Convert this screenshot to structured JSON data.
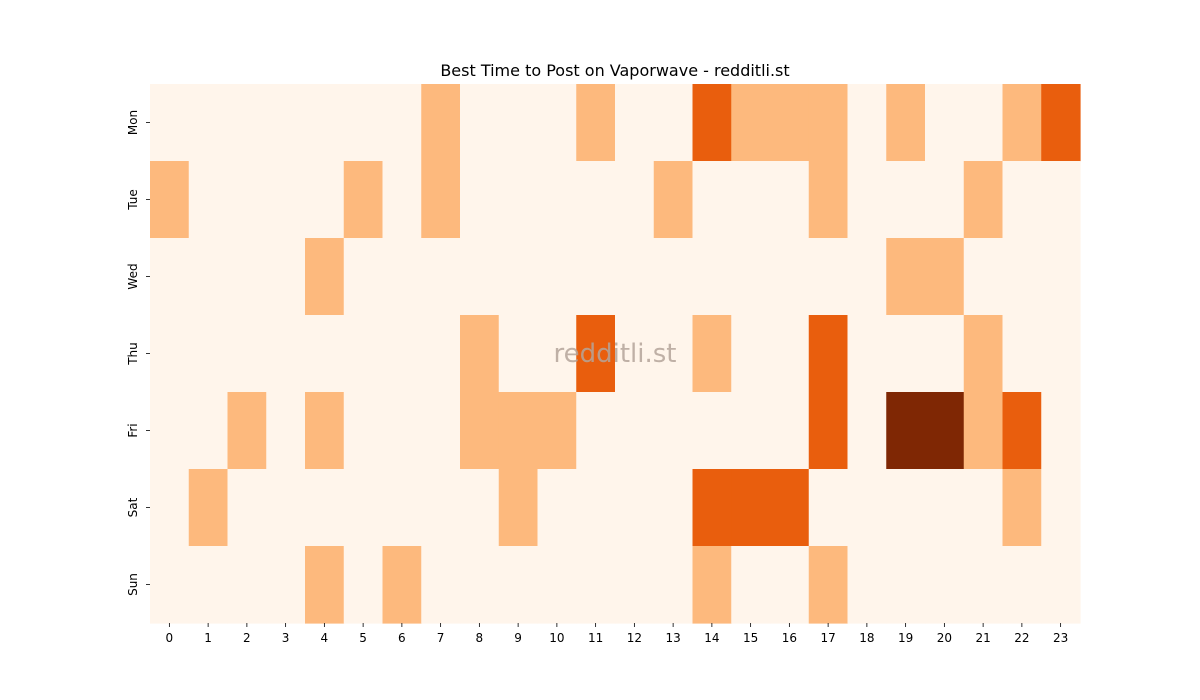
{
  "chart_data": {
    "type": "heatmap",
    "title": "Best Time to Post on Vaporwave - redditli.st",
    "watermark": "redditli.st",
    "xlabel": "",
    "ylabel": "",
    "x_categories": [
      "0",
      "1",
      "2",
      "3",
      "4",
      "5",
      "6",
      "7",
      "8",
      "9",
      "10",
      "11",
      "12",
      "13",
      "14",
      "15",
      "16",
      "17",
      "18",
      "19",
      "20",
      "21",
      "22",
      "23"
    ],
    "y_categories": [
      "Mon",
      "Tue",
      "Wed",
      "Thu",
      "Fri",
      "Sat",
      "Sun"
    ],
    "values": [
      [
        0,
        0,
        0,
        0,
        0,
        0,
        0,
        1,
        0,
        0,
        0,
        1,
        0,
        0,
        2,
        1,
        1,
        1,
        0,
        1,
        0,
        0,
        1,
        2
      ],
      [
        1,
        0,
        0,
        0,
        0,
        1,
        0,
        1,
        0,
        0,
        0,
        0,
        0,
        1,
        0,
        0,
        0,
        1,
        0,
        0,
        0,
        1,
        0,
        0
      ],
      [
        0,
        0,
        0,
        0,
        1,
        0,
        0,
        0,
        0,
        0,
        0,
        0,
        0,
        0,
        0,
        0,
        0,
        0,
        0,
        1,
        1,
        0,
        0,
        0
      ],
      [
        0,
        0,
        0,
        0,
        0,
        0,
        0,
        0,
        1,
        0,
        0,
        2,
        0,
        0,
        1,
        0,
        0,
        2,
        0,
        0,
        0,
        1,
        0,
        0
      ],
      [
        0,
        0,
        1,
        0,
        1,
        0,
        0,
        0,
        1,
        1,
        1,
        0,
        0,
        0,
        0,
        0,
        0,
        2,
        0,
        3,
        3,
        1,
        2,
        0
      ],
      [
        0,
        1,
        0,
        0,
        0,
        0,
        0,
        0,
        0,
        1,
        0,
        0,
        0,
        0,
        2,
        2,
        2,
        0,
        0,
        0,
        0,
        0,
        1,
        0
      ],
      [
        0,
        0,
        0,
        0,
        1,
        0,
        1,
        0,
        0,
        0,
        0,
        0,
        0,
        0,
        1,
        0,
        0,
        1,
        0,
        0,
        0,
        0,
        0,
        0
      ]
    ],
    "color_scale": [
      "#fff5eb",
      "#fdb97d",
      "#e95e0d",
      "#7f2704"
    ],
    "colorbar": false,
    "grid": false
  }
}
